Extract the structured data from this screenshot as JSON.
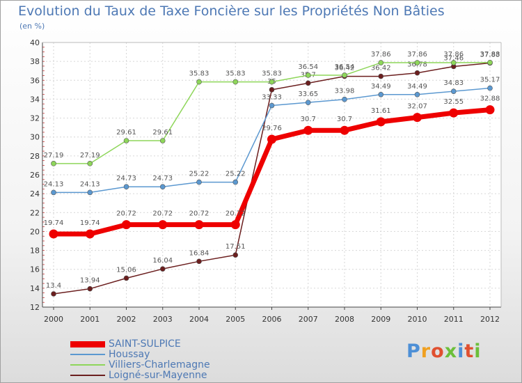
{
  "title": "Evolution du Taux de Taxe Foncière sur les Propriétés Non Bâties",
  "subtitle": "(en %)",
  "logo": "Proxiti",
  "chart_data": {
    "type": "line",
    "title": "Evolution du Taux de Taxe Foncière sur les Propriétés Non Bâties",
    "ylabel": "(en %)",
    "xlabel": "",
    "x": [
      "2000",
      "2001",
      "2002",
      "2003",
      "2004",
      "2005",
      "2006",
      "2007",
      "2008",
      "2009",
      "2010",
      "2011",
      "2012"
    ],
    "ylim": [
      12,
      40
    ],
    "yticks": [
      12,
      14,
      16,
      18,
      20,
      22,
      24,
      26,
      28,
      30,
      32,
      34,
      36,
      38,
      40
    ],
    "grid": true,
    "series": [
      {
        "name": "Loigné-sur-Mayenne",
        "color": "#6b1e1e",
        "values": [
          13.4,
          13.94,
          15.06,
          16.04,
          16.84,
          17.51,
          35,
          35.7,
          36.42,
          36.42,
          36.78,
          37.46,
          37.83
        ],
        "labels": [
          "13.4",
          "13.94",
          "15.06",
          "16.04",
          "16.84",
          "17.51",
          "35",
          "35.7",
          "36.42",
          "36.42",
          "36.78",
          "37.46",
          "37.83"
        ]
      },
      {
        "name": "Villiers-Charlemagne",
        "color": "#8ed65a",
        "values": [
          27.19,
          27.19,
          29.61,
          29.61,
          35.83,
          35.83,
          35.83,
          36.54,
          36.54,
          37.86,
          37.86,
          37.86,
          37.88
        ],
        "labels": [
          "27.19",
          "27.19",
          "29.61",
          "29.61",
          "35.83",
          "35.83",
          "35.83",
          "36.54",
          "36.54",
          "37.86",
          "37.86",
          "37.86",
          "37.88"
        ]
      },
      {
        "name": "Houssay",
        "color": "#5b98d0",
        "values": [
          24.13,
          24.13,
          24.73,
          24.73,
          25.22,
          25.22,
          33.33,
          33.65,
          33.98,
          34.49,
          34.49,
          34.83,
          35.17
        ],
        "labels": [
          "24.13",
          "24.13",
          "24.73",
          "24.73",
          "25.22",
          "25.22",
          "33.33",
          "33.65",
          "33.98",
          "34.49",
          "34.49",
          "34.83",
          "35.17"
        ]
      },
      {
        "name": "SAINT-SULPICE",
        "color": "#ee0000",
        "values": [
          19.74,
          19.74,
          20.72,
          20.72,
          20.72,
          20.72,
          29.76,
          30.7,
          30.7,
          31.61,
          32.07,
          32.55,
          32.88
        ],
        "labels": [
          "19.74",
          "19.74",
          "20.72",
          "20.72",
          "20.72",
          "20.72",
          "29.76",
          "30.7",
          "30.7",
          "31.61",
          "32.07",
          "32.55",
          "32.88"
        ]
      }
    ],
    "legend": [
      "SAINT-SULPICE",
      "Houssay",
      "Villiers-Charlemagne",
      "Loigné-sur-Mayenne"
    ]
  }
}
